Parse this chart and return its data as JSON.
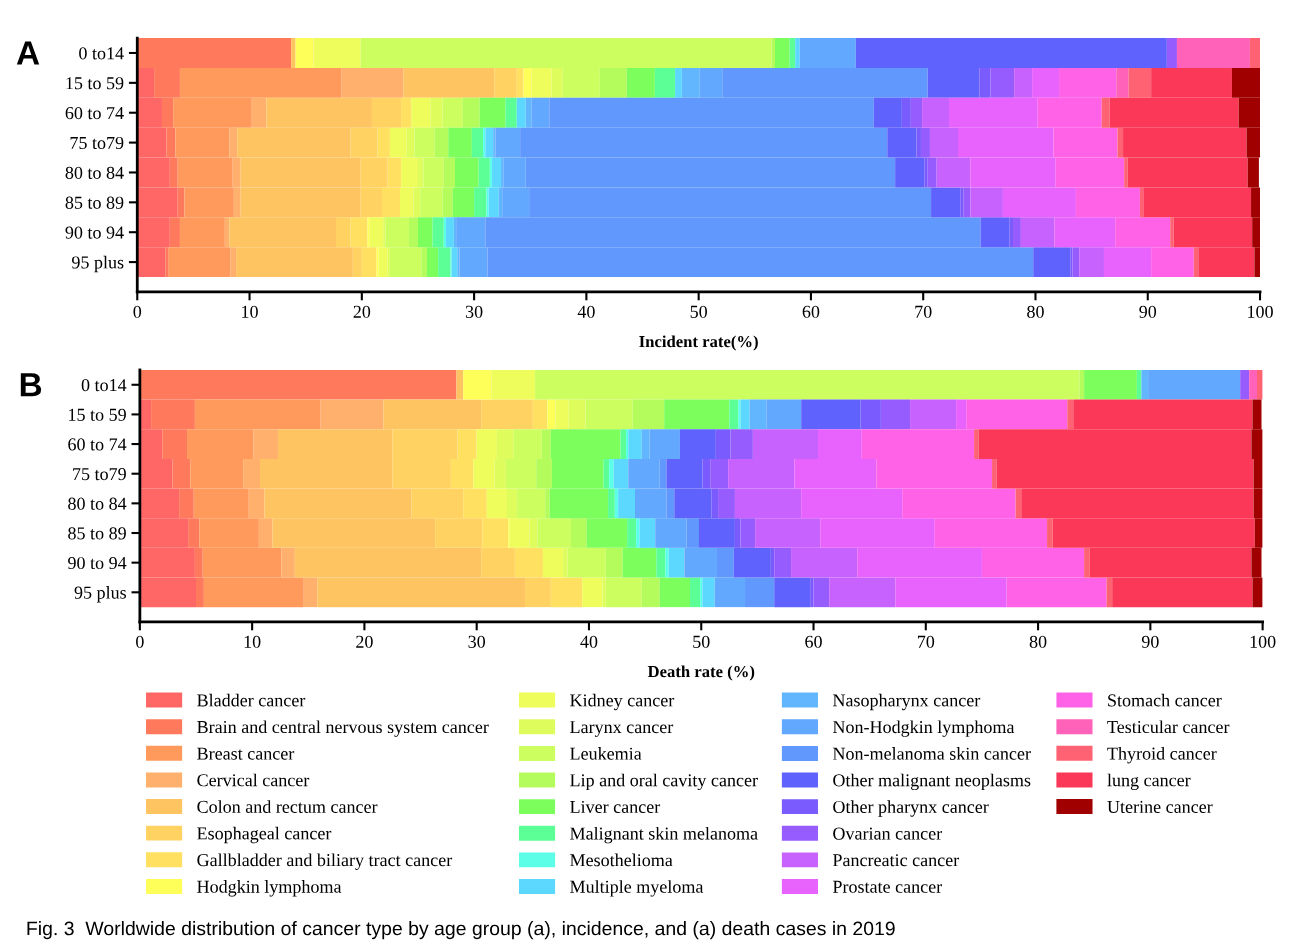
{
  "chart_data": [
    {
      "type": "bar",
      "orientation": "horizontal",
      "stacked": true,
      "title": "A",
      "xlabel": "Incident rate(%)",
      "xlim": [
        0,
        100
      ],
      "xticks": [
        0,
        10,
        20,
        30,
        40,
        50,
        60,
        70,
        80,
        90,
        100
      ],
      "categories": [
        "0 to14",
        "15 to 59",
        "60 to 74",
        "75 to79",
        "80 to 84",
        "85 to 89",
        "90 to 94",
        "95 plus"
      ],
      "series": [
        {
          "color": "#ff6666",
          "values": [
            0,
            1.5,
            2.2,
            2.6,
            2.9,
            3.6,
            2.9,
            2.5
          ]
        },
        {
          "color": "#ff7a5c",
          "values": [
            13.7,
            2.3,
            1.0,
            0.8,
            0.7,
            0.6,
            0.9,
            0.3
          ]
        },
        {
          "color": "#ff9a5c",
          "values": [
            0,
            14.4,
            7.0,
            4.8,
            4.9,
            4.4,
            4.0,
            5.5
          ]
        },
        {
          "color": "#ffb06c",
          "values": [
            0,
            5.5,
            1.3,
            0.7,
            0.7,
            0.6,
            0.4,
            0.5
          ]
        },
        {
          "color": "#ffc462",
          "values": [
            0.4,
            8.1,
            9.4,
            10.1,
            10.7,
            10.7,
            9.5,
            10.4
          ]
        },
        {
          "color": "#ffd262",
          "values": [
            0,
            2.0,
            2.6,
            2.4,
            2.4,
            1.9,
            1.3,
            0.8
          ]
        },
        {
          "color": "#ffe060",
          "values": [
            0,
            0.6,
            0.9,
            1.1,
            1.2,
            1.6,
            1.5,
            1.3
          ]
        },
        {
          "color": "#ffff5a",
          "values": [
            1.6,
            0.7,
            0,
            0,
            0,
            0,
            0.2,
            0.2
          ]
        },
        {
          "color": "#eefc5c",
          "values": [
            4.2,
            1.8,
            1.7,
            1.5,
            1.5,
            1.2,
            1.2,
            0.8
          ]
        },
        {
          "color": "#defc5c",
          "values": [
            0,
            1.0,
            1.1,
            0.7,
            0.5,
            0.6,
            0.2,
            0.2
          ]
        },
        {
          "color": "#ccfe60",
          "values": [
            36.6,
            3.3,
            1.8,
            1.8,
            1.8,
            2.0,
            2.1,
            2.8
          ]
        },
        {
          "color": "#b4fc5c",
          "values": [
            0.3,
            2.4,
            1.5,
            1.2,
            1.0,
            0.9,
            0.8,
            0.5
          ]
        },
        {
          "color": "#7cfe5c",
          "values": [
            1.3,
            2.5,
            2.3,
            2.1,
            2.1,
            1.9,
            1.3,
            1.0
          ]
        },
        {
          "color": "#5cfe96",
          "values": [
            0.5,
            1.8,
            1.0,
            1.0,
            1.0,
            1.1,
            1.0,
            1.1
          ]
        },
        {
          "color": "#5cfee8",
          "values": [
            0,
            0,
            0,
            0.2,
            0.2,
            0.2,
            0.2,
            0.1
          ]
        },
        {
          "color": "#5cd8fe",
          "values": [
            0.4,
            0.6,
            0.8,
            0.7,
            0.8,
            0.9,
            0.7,
            0.5
          ]
        },
        {
          "color": "#62b6fe",
          "values": [
            0,
            1.6,
            0.5,
            0.2,
            0.2,
            0.3,
            0.2,
            0.2
          ]
        },
        {
          "color": "#62a8fe",
          "values": [
            5.0,
            2.0,
            1.6,
            2.2,
            2.0,
            2.4,
            2.6,
            2.5
          ]
        },
        {
          "color": "#6098fe",
          "values": [
            0,
            18.3,
            28.9,
            32.7,
            32.9,
            35.8,
            44.1,
            48.6
          ]
        },
        {
          "color": "#6062fe",
          "values": [
            27.7,
            4.6,
            2.5,
            2.6,
            2.6,
            2.6,
            2.6,
            3.3
          ]
        },
        {
          "color": "#7a5cfe",
          "values": [
            0,
            1.0,
            0.8,
            0.4,
            0.3,
            0.3,
            0.3,
            0.2
          ]
        },
        {
          "color": "#965cfe",
          "values": [
            0.9,
            2.1,
            1.0,
            0.8,
            0.8,
            0.6,
            0.7,
            0.6
          ]
        },
        {
          "color": "#c862fe",
          "values": [
            0,
            1.6,
            2.4,
            2.5,
            3.0,
            2.9,
            3.0,
            2.2
          ]
        },
        {
          "color": "#e862fe",
          "values": [
            0,
            2.4,
            7.9,
            8.5,
            7.6,
            6.5,
            5.4,
            4.2
          ]
        },
        {
          "color": "#ff62e6",
          "values": [
            0,
            5.1,
            5.7,
            5.7,
            6.1,
            5.7,
            4.9,
            3.8
          ]
        },
        {
          "color": "#ff62b8",
          "values": [
            6.5,
            1.1,
            0,
            0,
            0,
            0,
            0,
            0
          ]
        },
        {
          "color": "#ff6272",
          "values": [
            0.9,
            2.0,
            0.7,
            0.5,
            0.3,
            0.3,
            0.3,
            0.4
          ]
        },
        {
          "color": "#fb3858",
          "values": [
            0,
            7.2,
            11.5,
            11.0,
            10.7,
            9.6,
            7.0,
            5.0
          ]
        },
        {
          "color": "#a00000",
          "values": [
            0,
            2.5,
            1.9,
            1.2,
            1.0,
            0.8,
            0.7,
            0.5
          ]
        }
      ]
    },
    {
      "type": "bar",
      "orientation": "horizontal",
      "stacked": true,
      "title": "B",
      "xlabel": "Death rate (%)",
      "xlim": [
        0,
        100
      ],
      "xticks": [
        0,
        10,
        20,
        30,
        40,
        50,
        60,
        70,
        80,
        90,
        100
      ],
      "legend": "bottom",
      "annotations": [
        "Fig. 3  Worldwide distribution of cancer type by age group (a), incidence, and (a) death cases in 2019"
      ],
      "categories": [
        "0 to14",
        "15 to 59",
        "60 to 74",
        "75 to79",
        "80 to 84",
        "85 to 89",
        "90 to 94",
        "95 plus"
      ],
      "series": [
        {
          "name": "Bladder cancer",
          "color": "#ff6666",
          "values": [
            0,
            1.0,
            2.0,
            2.9,
            3.5,
            4.3,
            4.9,
            5.0
          ]
        },
        {
          "name": "Brain and central nervous system cancer",
          "color": "#ff7a5c",
          "values": [
            28.2,
            3.9,
            2.2,
            1.6,
            1.3,
            1.0,
            0.7,
            0.7
          ]
        },
        {
          "name": "Breast cancer",
          "color": "#ff9a5c",
          "values": [
            0,
            11.2,
            5.9,
            4.7,
            4.9,
            5.3,
            7.0,
            8.9
          ]
        },
        {
          "name": "Cervical cancer",
          "color": "#ffb06c",
          "values": [
            0,
            5.6,
            2.2,
            1.5,
            1.4,
            1.2,
            1.2,
            1.2
          ]
        },
        {
          "name": "Colon and rectum cancer",
          "color": "#ffc462",
          "values": [
            0.6,
            8.7,
            10.2,
            11.8,
            13.1,
            14.5,
            16.6,
            18.5
          ]
        },
        {
          "name": "Esophageal cancer",
          "color": "#ffd262",
          "values": [
            0,
            4.6,
            5.8,
            5.2,
            4.6,
            4.2,
            3.0,
            2.3
          ]
        },
        {
          "name": "Gallbladder and biliary tract cancer",
          "color": "#ffe060",
          "values": [
            0,
            1.3,
            1.7,
            2.0,
            2.1,
            2.3,
            2.5,
            2.8
          ]
        },
        {
          "name": "Hodgkin lymphoma",
          "color": "#ffff5a",
          "values": [
            2.5,
            0.7,
            0,
            0,
            0,
            0.1,
            0,
            0
          ]
        },
        {
          "name": "Kidney cancer",
          "color": "#eefc5c",
          "values": [
            3.9,
            1.2,
            1.8,
            1.9,
            1.8,
            1.8,
            1.8,
            1.8
          ]
        },
        {
          "name": "Larynx cancer",
          "color": "#defc5c",
          "values": [
            0,
            1.5,
            1.5,
            1.0,
            0.9,
            0.7,
            0.4,
            0.3
          ]
        },
        {
          "name": "Leukemia",
          "color": "#ccfe60",
          "values": [
            48.5,
            4.2,
            2.5,
            2.7,
            2.5,
            3.0,
            3.4,
            3.2
          ]
        },
        {
          "name": "Lip and oral cavity cancer",
          "color": "#b4fc5c",
          "values": [
            0.4,
            2.8,
            0.8,
            1.4,
            0.4,
            1.4,
            1.5,
            1.6
          ]
        },
        {
          "name": "Liver cancer",
          "color": "#7cfe5c",
          "values": [
            4.7,
            5.8,
            6.2,
            4.6,
            5.2,
            3.6,
            3.0,
            2.7
          ]
        },
        {
          "name": "Malignant skin melanoma",
          "color": "#5cfe96",
          "values": [
            0.4,
            0.8,
            0.5,
            0.5,
            0.6,
            0.8,
            0.8,
            0.9
          ]
        },
        {
          "name": "Mesothelioma",
          "color": "#5cfee8",
          "values": [
            0,
            0.2,
            0.2,
            0.4,
            0.3,
            0.3,
            0.3,
            0.2
          ]
        },
        {
          "name": "Multiple myeloma",
          "color": "#5cd8fe",
          "values": [
            0,
            0.8,
            1.2,
            1.3,
            1.5,
            1.4,
            1.4,
            1.1
          ]
        },
        {
          "name": "Nasopharynx cancer",
          "color": "#62b6fe",
          "values": [
            0.6,
            1.5,
            0.7,
            0,
            0,
            0,
            0,
            0
          ]
        },
        {
          "name": "Non-Hodgkin lymphoma",
          "color": "#62a8fe",
          "values": [
            8.2,
            3.1,
            2.7,
            2.8,
            2.8,
            2.8,
            2.9,
            2.7
          ]
        },
        {
          "name": "Non-melanoma skin cancer",
          "color": "#6098fe",
          "values": [
            0,
            0,
            0,
            0.6,
            0.7,
            1.1,
            1.5,
            2.6
          ]
        },
        {
          "name": "Other malignant neoplasms",
          "color": "#6062fe",
          "values": [
            0,
            5.3,
            3.2,
            3.2,
            3.3,
            3.2,
            3.3,
            3.2
          ]
        },
        {
          "name": "Other pharynx cancer",
          "color": "#7a5cfe",
          "values": [
            0,
            1.8,
            1.3,
            0.7,
            0.6,
            0.5,
            0.3,
            0.3
          ]
        },
        {
          "name": "Ovarian cancer",
          "color": "#965cfe",
          "values": [
            0.8,
            2.6,
            2.0,
            1.6,
            1.5,
            1.3,
            1.5,
            1.4
          ]
        },
        {
          "name": "Pancreatic cancer",
          "color": "#c862fe",
          "values": [
            0,
            4.1,
            5.8,
            5.9,
            5.9,
            5.8,
            5.9,
            5.9
          ]
        },
        {
          "name": "Prostate cancer",
          "color": "#e862fe",
          "values": [
            0,
            0.9,
            3.9,
            7.3,
            9.0,
            10.2,
            11.1,
            9.9
          ]
        },
        {
          "name": "Stomach cancer",
          "color": "#ff62e6",
          "values": [
            0,
            9.0,
            10.0,
            10.3,
            10.1,
            10.0,
            9.1,
            8.9
          ]
        },
        {
          "name": "Testicular cancer",
          "color": "#ff62b8",
          "values": [
            0.7,
            0,
            0,
            0,
            0,
            0,
            0,
            0
          ]
        },
        {
          "name": "Thyroid cancer",
          "color": "#ff6272",
          "values": [
            0.5,
            0.6,
            0.4,
            0.4,
            0.5,
            0.5,
            0.5,
            0.5
          ]
        },
        {
          "name": "lung cancer",
          "color": "#fb3858",
          "values": [
            0,
            15.9,
            24.3,
            22.9,
            20.7,
            18.0,
            14.4,
            12.5
          ]
        },
        {
          "name": "Uterine cancer",
          "color": "#a00000",
          "values": [
            0,
            0.8,
            1.0,
            0.8,
            0.8,
            0.7,
            0.9,
            0.9
          ]
        }
      ]
    }
  ]
}
